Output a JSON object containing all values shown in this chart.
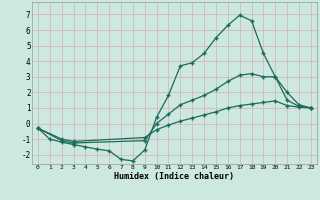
{
  "xlabel": "Humidex (Indice chaleur)",
  "bg_color": "#cce8e0",
  "grid_color": "#d4b8b8",
  "line_color": "#1a6b5a",
  "marker": "+",
  "xlim": [
    -0.5,
    23.5
  ],
  "ylim": [
    -2.6,
    7.8
  ],
  "xticks": [
    0,
    1,
    2,
    3,
    4,
    5,
    6,
    7,
    8,
    9,
    10,
    11,
    12,
    13,
    14,
    15,
    16,
    17,
    18,
    19,
    20,
    21,
    22,
    23
  ],
  "yticks": [
    -2,
    -1,
    0,
    1,
    2,
    3,
    4,
    5,
    6,
    7
  ],
  "line1_x": [
    0,
    1,
    2,
    3,
    4,
    5,
    6,
    7,
    8,
    9,
    10,
    11,
    12,
    13,
    14,
    15,
    16,
    17,
    18,
    19,
    20,
    21,
    22,
    23
  ],
  "line1_y": [
    -0.3,
    -1.0,
    -1.2,
    -1.35,
    -1.5,
    -1.65,
    -1.75,
    -2.3,
    -2.4,
    -1.7,
    0.4,
    1.8,
    3.7,
    3.9,
    4.5,
    5.5,
    6.3,
    6.95,
    6.6,
    4.5,
    3.0,
    1.5,
    1.1,
    1.0
  ],
  "line2_x": [
    0,
    2,
    3,
    9,
    10,
    11,
    12,
    13,
    14,
    15,
    16,
    17,
    18,
    19,
    20,
    21,
    22,
    23
  ],
  "line2_y": [
    -0.3,
    -1.1,
    -1.25,
    -1.1,
    0.0,
    0.6,
    1.2,
    1.5,
    1.8,
    2.2,
    2.7,
    3.1,
    3.2,
    3.0,
    3.0,
    2.0,
    1.2,
    1.0
  ],
  "line3_x": [
    0,
    2,
    3,
    9,
    10,
    11,
    12,
    13,
    14,
    15,
    16,
    17,
    18,
    19,
    20,
    21,
    22,
    23
  ],
  "line3_y": [
    -0.3,
    -1.0,
    -1.15,
    -0.9,
    -0.4,
    -0.1,
    0.15,
    0.35,
    0.55,
    0.75,
    1.0,
    1.15,
    1.25,
    1.35,
    1.45,
    1.15,
    1.05,
    1.0
  ]
}
